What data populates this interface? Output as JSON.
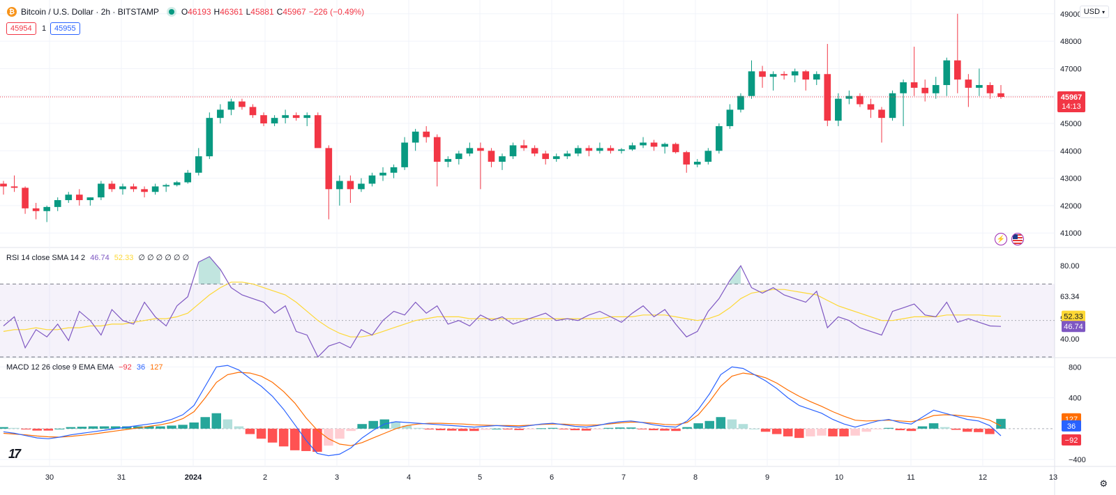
{
  "header": {
    "symbol": "Bitcoin / U.S. Dollar · 2h · BITSTAMP",
    "coin_glyph": "₿",
    "ohlc": {
      "o_label": "O",
      "o": "46193",
      "h_label": "H",
      "h": "46361",
      "l_label": "L",
      "l": "45881",
      "c_label": "C",
      "c": "45967",
      "change": "−226 (−0.49%)"
    },
    "sell_price": "45954",
    "spread": "1",
    "buy_price": "45955",
    "currency": "USD"
  },
  "price_axis": {
    "ticks": [
      "49000",
      "48000",
      "47000",
      "46000",
      "45000",
      "44000",
      "43000",
      "42000",
      "41000"
    ],
    "last_price": "45967",
    "countdown": "14:13"
  },
  "rsi": {
    "legend": {
      "name": "RSI 14 close SMA 14 2",
      "rsi": "46.74",
      "sma": "52.33",
      "zeros": "∅ ∅ ∅ ∅ ∅ ∅"
    },
    "ticks": [
      "80.00",
      "63.34",
      "50.93",
      "40.00"
    ],
    "badges": {
      "sma": "52.33",
      "rsi": "46.74"
    }
  },
  "macd": {
    "legend": {
      "name": "MACD 12 26 close 9 EMA EMA",
      "macd": "−92",
      "signal": "36",
      "hist": "127"
    },
    "ticks": [
      "800",
      "400",
      "−400"
    ],
    "badges": {
      "hist": "127",
      "signal": "36",
      "macd": "−92"
    }
  },
  "time_axis": {
    "labels": [
      "30",
      "31",
      "2024",
      "2",
      "3",
      "4",
      "5",
      "6",
      "7",
      "8",
      "9",
      "10",
      "11",
      "12",
      "13"
    ]
  },
  "colors": {
    "up": "#089981",
    "down": "#f23645",
    "rsi_line": "#7e57c2",
    "rsi_sma": "#fdd835",
    "macd_line": "#2962ff",
    "signal_line": "#ff6d00",
    "grid": "#f0f3fa"
  },
  "chart_data": [
    {
      "type": "candlestick",
      "title": "Bitcoin / U.S. Dollar · 2h · BITSTAMP",
      "ylim": [
        40700,
        49300
      ],
      "x_labels": [
        "30",
        "31",
        "2024",
        "2",
        "3",
        "4",
        "5",
        "6",
        "7",
        "8",
        "9",
        "10",
        "11",
        "12",
        "13"
      ],
      "anchors": [
        [
          42800,
          42900,
          42400,
          42700
        ],
        [
          42700,
          43100,
          42500,
          42650
        ],
        [
          42650,
          42700,
          41700,
          41900
        ],
        [
          41900,
          42100,
          41500,
          41800
        ],
        [
          41800,
          42000,
          41400,
          41950
        ],
        [
          41950,
          42300,
          41800,
          42200
        ],
        [
          42200,
          42500,
          42100,
          42400
        ],
        [
          42400,
          42600,
          42000,
          42200
        ],
        [
          42200,
          42300,
          42000,
          42300
        ],
        [
          42300,
          42900,
          42200,
          42800
        ],
        [
          42800,
          42900,
          42500,
          42600
        ],
        [
          42600,
          42800,
          42400,
          42700
        ],
        [
          42700,
          42800,
          42500,
          42600
        ],
        [
          42600,
          42700,
          42300,
          42500
        ],
        [
          42500,
          42800,
          42400,
          42700
        ],
        [
          42700,
          42800,
          42500,
          42750
        ],
        [
          42750,
          42900,
          42700,
          42850
        ],
        [
          42850,
          43300,
          42800,
          43200
        ],
        [
          43200,
          44100,
          43100,
          43800
        ],
        [
          43800,
          45400,
          43700,
          45200
        ],
        [
          45200,
          45700,
          45000,
          45500
        ],
        [
          45500,
          45900,
          45300,
          45800
        ],
        [
          45800,
          45900,
          45500,
          45600
        ],
        [
          45600,
          45700,
          45200,
          45300
        ],
        [
          45300,
          45400,
          44900,
          45000
        ],
        [
          45000,
          45300,
          44900,
          45200
        ],
        [
          45200,
          45500,
          45000,
          45300
        ],
        [
          45300,
          45400,
          45100,
          45200
        ],
        [
          45200,
          45400,
          44900,
          45300
        ],
        [
          45300,
          45400,
          44200,
          44100
        ],
        [
          44100,
          44200,
          41500,
          42600
        ],
        [
          42600,
          43100,
          42000,
          42900
        ],
        [
          42900,
          43100,
          42100,
          42600
        ],
        [
          42600,
          43000,
          42500,
          42800
        ],
        [
          42800,
          43200,
          42700,
          43100
        ],
        [
          43100,
          43400,
          42900,
          43200
        ],
        [
          43200,
          43500,
          43000,
          43400
        ],
        [
          43400,
          44500,
          43300,
          44300
        ],
        [
          44300,
          44800,
          44000,
          44700
        ],
        [
          44700,
          44900,
          44300,
          44500
        ],
        [
          44500,
          44600,
          42700,
          43600
        ],
        [
          43600,
          43800,
          43400,
          43700
        ],
        [
          43700,
          44000,
          43500,
          43900
        ],
        [
          43900,
          44300,
          43800,
          44100
        ],
        [
          44100,
          44300,
          42600,
          44000
        ],
        [
          44000,
          44100,
          43400,
          43600
        ],
        [
          43600,
          43900,
          43300,
          43800
        ],
        [
          43800,
          44300,
          43700,
          44200
        ],
        [
          44200,
          44400,
          44000,
          44100
        ],
        [
          44100,
          44200,
          43800,
          43900
        ],
        [
          43900,
          44000,
          43500,
          43700
        ],
        [
          43700,
          43900,
          43600,
          43800
        ],
        [
          43800,
          44000,
          43700,
          43900
        ],
        [
          43900,
          44200,
          43800,
          44100
        ],
        [
          44100,
          44200,
          43800,
          44000
        ],
        [
          44000,
          44300,
          43900,
          44100
        ],
        [
          44100,
          44200,
          43900,
          44000
        ],
        [
          44000,
          44100,
          43900,
          44050
        ],
        [
          44050,
          44300,
          44000,
          44200
        ],
        [
          44200,
          44500,
          44100,
          44300
        ],
        [
          44300,
          44400,
          44000,
          44150
        ],
        [
          44150,
          44300,
          43900,
          44250
        ],
        [
          44250,
          44300,
          43900,
          43950
        ],
        [
          43950,
          44000,
          43200,
          43500
        ],
        [
          43500,
          43700,
          43400,
          43600
        ],
        [
          43600,
          44100,
          43500,
          44000
        ],
        [
          44000,
          45000,
          43900,
          44900
        ],
        [
          44900,
          45700,
          44800,
          45500
        ],
        [
          45500,
          46100,
          45400,
          46000
        ],
        [
          46000,
          47300,
          45900,
          46900
        ],
        [
          46900,
          47100,
          46300,
          46700
        ],
        [
          46700,
          46900,
          46200,
          46800
        ],
        [
          46800,
          46900,
          46600,
          46750
        ],
        [
          46750,
          47000,
          46500,
          46900
        ],
        [
          46900,
          46950,
          46200,
          46600
        ],
        [
          46600,
          46900,
          46400,
          46800
        ],
        [
          46800,
          47900,
          44900,
          45100
        ],
        [
          45100,
          46100,
          44900,
          45900
        ],
        [
          45900,
          46200,
          45700,
          46000
        ],
        [
          46000,
          46100,
          45600,
          45700
        ],
        [
          45700,
          45900,
          45200,
          45500
        ],
        [
          45500,
          45600,
          44300,
          45200
        ],
        [
          45200,
          46200,
          45100,
          46100
        ],
        [
          46100,
          46600,
          44900,
          46500
        ],
        [
          46500,
          47800,
          46000,
          46300
        ],
        [
          46300,
          46600,
          45800,
          46100
        ],
        [
          46100,
          46700,
          45900,
          46400
        ],
        [
          46400,
          47400,
          46000,
          47300
        ],
        [
          47300,
          49000,
          46100,
          46600
        ],
        [
          46600,
          46800,
          45600,
          46300
        ],
        [
          46300,
          47000,
          46000,
          46400
        ],
        [
          46400,
          46500,
          45900,
          46100
        ],
        [
          46100,
          46400,
          45900,
          45967
        ]
      ]
    },
    {
      "type": "line",
      "title": "RSI 14 close SMA 14 2",
      "ylim": [
        30,
        90
      ],
      "series": [
        {
          "name": "RSI",
          "values": [
            47,
            52,
            35,
            45,
            41,
            48,
            39,
            55,
            50,
            42,
            56,
            50,
            48,
            60,
            52,
            47,
            58,
            63,
            82,
            85,
            78,
            68,
            64,
            62,
            60,
            54,
            58,
            44,
            42,
            30,
            36,
            38,
            35,
            45,
            42,
            50,
            55,
            53,
            60,
            54,
            58,
            48,
            50,
            47,
            53,
            50,
            52,
            48,
            50,
            52,
            54,
            50,
            51,
            50,
            53,
            55,
            52,
            49,
            54,
            58,
            52,
            56,
            48,
            41,
            44,
            55,
            62,
            72,
            80,
            68,
            65,
            68,
            64,
            62,
            60,
            66,
            46,
            52,
            50,
            46,
            44,
            42,
            55,
            57,
            59,
            53,
            52,
            60,
            49,
            51,
            49,
            47,
            46.74
          ]
        },
        {
          "name": "SMA",
          "values": [
            44,
            45,
            45,
            46,
            45,
            45,
            46,
            46,
            47,
            47,
            48,
            48,
            49,
            50,
            51,
            51,
            52,
            54,
            59,
            64,
            68,
            71,
            71,
            70,
            68,
            66,
            64,
            60,
            55,
            50,
            46,
            43,
            41,
            41,
            42,
            44,
            46,
            48,
            50,
            51,
            52,
            52,
            52,
            51,
            51,
            51,
            51,
            51,
            51,
            51,
            51,
            51,
            51,
            51,
            51,
            51,
            52,
            52,
            52,
            53,
            53,
            53,
            52,
            51,
            50,
            51,
            53,
            57,
            62,
            65,
            66,
            67,
            67,
            66,
            65,
            64,
            61,
            58,
            56,
            54,
            52,
            50,
            50,
            51,
            52,
            52,
            52,
            53,
            53,
            53,
            53,
            52.5,
            52.33
          ]
        }
      ]
    },
    {
      "type": "bar",
      "title": "MACD 12 26 close 9 EMA EMA",
      "ylim": [
        -480,
        920
      ],
      "series": [
        {
          "name": "MACD",
          "values": [
            -40,
            -60,
            -90,
            -120,
            -130,
            -110,
            -80,
            -60,
            -40,
            -20,
            0,
            20,
            40,
            60,
            80,
            120,
            180,
            300,
            550,
            800,
            820,
            760,
            650,
            550,
            420,
            250,
            50,
            -150,
            -320,
            -350,
            -330,
            -250,
            -120,
            -20,
            60,
            90,
            80,
            70,
            60,
            50,
            40,
            30,
            20,
            30,
            40,
            30,
            20,
            40,
            60,
            70,
            50,
            30,
            20,
            40,
            70,
            90,
            100,
            80,
            50,
            30,
            20,
            100,
            250,
            450,
            700,
            800,
            780,
            700,
            620,
            520,
            400,
            300,
            250,
            200,
            120,
            60,
            20,
            60,
            100,
            120,
            80,
            60,
            150,
            240,
            200,
            160,
            120,
            100,
            40,
            -92
          ]
        },
        {
          "name": "Signal",
          "values": [
            -60,
            -70,
            -80,
            -95,
            -105,
            -110,
            -100,
            -85,
            -70,
            -50,
            -30,
            -10,
            10,
            30,
            50,
            80,
            130,
            220,
            400,
            600,
            700,
            730,
            720,
            680,
            600,
            480,
            330,
            140,
            -20,
            -130,
            -200,
            -220,
            -180,
            -120,
            -60,
            0,
            40,
            60,
            70,
            70,
            65,
            60,
            50,
            45,
            40,
            40,
            38,
            45,
            55,
            60,
            58,
            50,
            45,
            48,
            60,
            75,
            85,
            82,
            70,
            55,
            50,
            80,
            180,
            350,
            550,
            680,
            720,
            700,
            660,
            590,
            500,
            420,
            350,
            290,
            220,
            160,
            110,
            100,
            105,
            110,
            100,
            90,
            120,
            170,
            180,
            175,
            160,
            145,
            110,
            36
          ]
        },
        {
          "name": "Histogram",
          "values": [
            20,
            10,
            -10,
            -25,
            -25,
            0,
            20,
            25,
            30,
            30,
            30,
            30,
            30,
            30,
            30,
            40,
            50,
            80,
            150,
            200,
            120,
            30,
            -70,
            -130,
            -180,
            -230,
            -280,
            -290,
            -300,
            -220,
            -130,
            -30,
            60,
            100,
            120,
            90,
            40,
            10,
            -10,
            -20,
            -25,
            -30,
            -30,
            -15,
            0,
            -10,
            -18,
            -5,
            5,
            10,
            -8,
            -20,
            -25,
            -8,
            10,
            15,
            15,
            -2,
            -20,
            -25,
            -30,
            20,
            70,
            100,
            150,
            120,
            60,
            0,
            -40,
            -70,
            -100,
            -120,
            -100,
            -90,
            -100,
            -100,
            -90,
            -40,
            -5,
            10,
            -20,
            -30,
            30,
            70,
            20,
            -15,
            -40,
            -45,
            -70,
            127
          ]
        }
      ]
    }
  ]
}
